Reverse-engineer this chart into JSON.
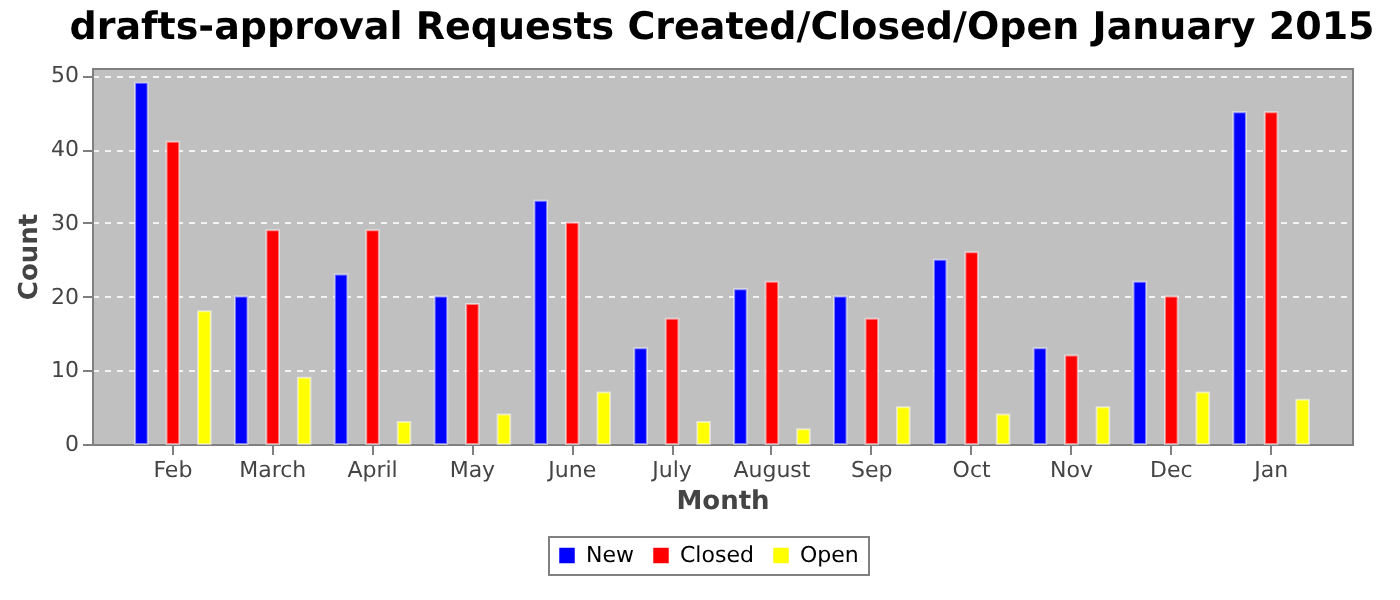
{
  "chart_data": {
    "type": "bar",
    "title": "drafts-approval Requests Created/Closed/Open January 2015",
    "xlabel": "Month",
    "ylabel": "Count",
    "categories": [
      "Feb",
      "March",
      "April",
      "May",
      "June",
      "July",
      "August",
      "Sep",
      "Oct",
      "Nov",
      "Dec",
      "Jan"
    ],
    "series": [
      {
        "name": "New",
        "color": "#0000ff",
        "values": [
          49,
          20,
          23,
          20,
          33,
          13,
          21,
          20,
          25,
          13,
          22,
          45
        ]
      },
      {
        "name": "Closed",
        "color": "#ff0000",
        "values": [
          41,
          29,
          29,
          19,
          30,
          17,
          22,
          17,
          26,
          12,
          20,
          45
        ]
      },
      {
        "name": "Open",
        "color": "#ffff00",
        "values": [
          18,
          9,
          3,
          4,
          7,
          3,
          2,
          5,
          4,
          5,
          7,
          6
        ]
      }
    ],
    "ylim": [
      0,
      51
    ],
    "yticks": [
      0,
      10,
      20,
      30,
      40,
      50
    ],
    "grid": "y",
    "legend": "bottom"
  }
}
